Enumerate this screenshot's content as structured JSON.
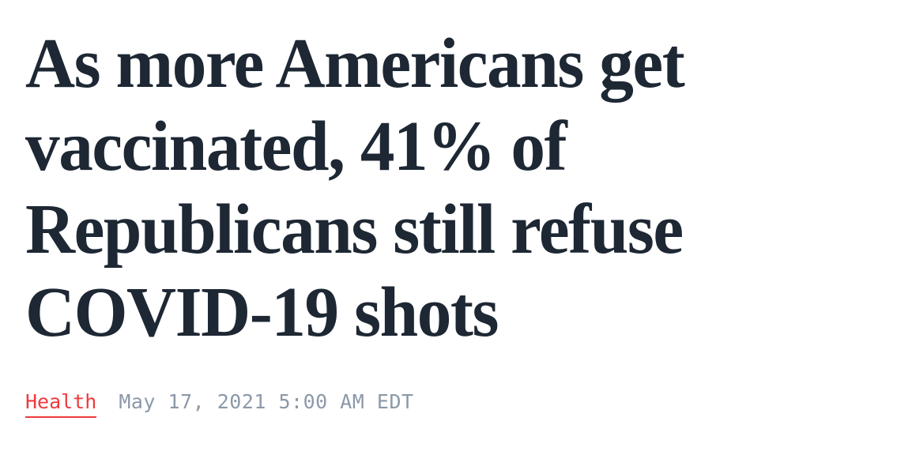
{
  "article": {
    "headline": {
      "text": "As more Americans get vaccinated, 41% of Republicans still refuse COVID-19 shots",
      "lines": [
        "As more Americans get",
        "vaccinated, 41% of",
        "Republicans still refuse",
        "COVID-19 shots"
      ]
    },
    "meta": {
      "category": "Health",
      "published": "May 17, 2021 5:00 AM EDT"
    },
    "colors": {
      "background": "#ffffff",
      "headline_text": "#1e2834",
      "category_red": "#ef3a3d",
      "timestamp_gray": "#8b99a8"
    }
  }
}
